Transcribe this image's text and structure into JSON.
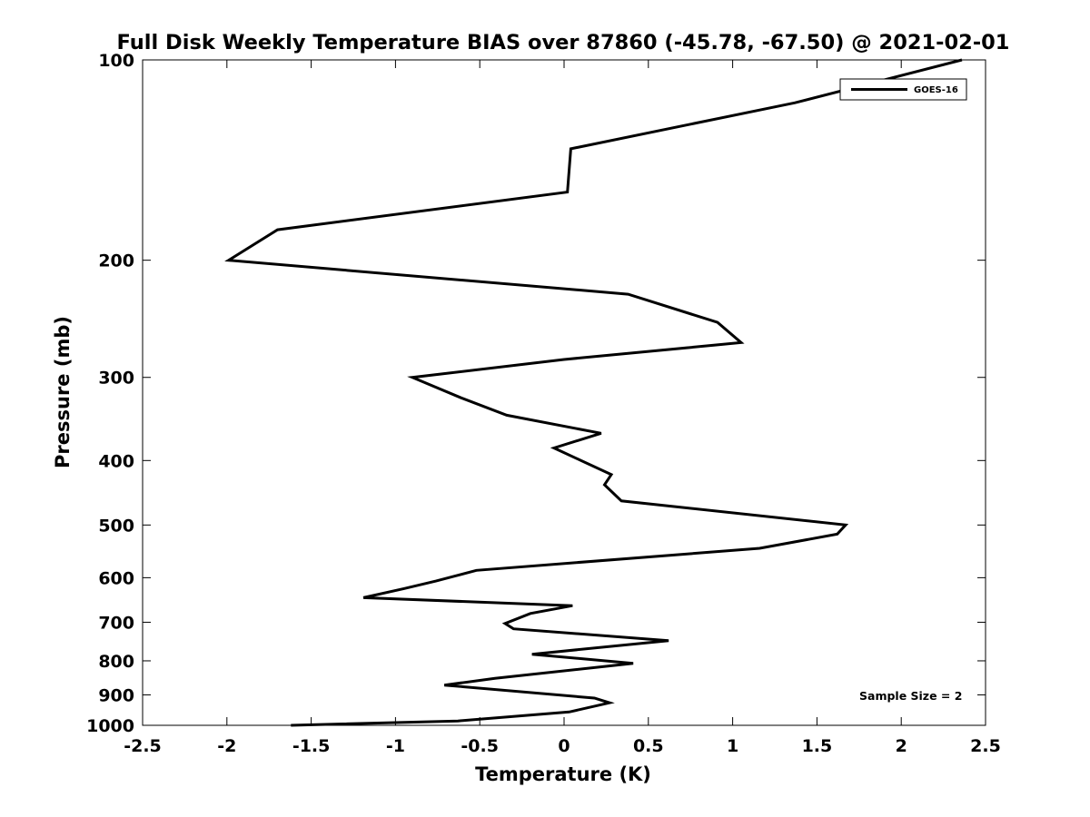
{
  "chart_data": {
    "type": "line",
    "title": "Full Disk Weekly Temperature BIAS over 87860 (-45.78, -67.50) @ 2021-02-01",
    "xlabel": "Temperature (K)",
    "ylabel": "Pressure (mb)",
    "xlim": [
      -2.5,
      2.5
    ],
    "ylim": [
      100,
      1000
    ],
    "yscale": "log",
    "yreversed": true,
    "xticks": [
      -2.5,
      -2,
      -1.5,
      -1,
      -0.5,
      0,
      0.5,
      1,
      1.5,
      2,
      2.5
    ],
    "xtick_labels": [
      "-2.5",
      "-2",
      "-1.5",
      "-1",
      "-0.5",
      "0",
      "0.5",
      "1",
      "1.5",
      "2",
      "2.5"
    ],
    "yticks": [
      100,
      200,
      300,
      400,
      500,
      600,
      700,
      800,
      900,
      1000
    ],
    "ytick_labels": [
      "100",
      "200",
      "300",
      "400",
      "500",
      "600",
      "700",
      "800",
      "900",
      "1000"
    ],
    "grid": false,
    "legend_position": "top-right",
    "series": [
      {
        "name": "GOES-16",
        "color": "#000000",
        "points": [
          [
            2.36,
            100
          ],
          [
            1.37,
            116
          ],
          [
            0.04,
            136
          ],
          [
            0.02,
            158
          ],
          [
            -1.7,
            180
          ],
          [
            -1.99,
            200
          ],
          [
            0.38,
            225
          ],
          [
            0.91,
            248
          ],
          [
            1.05,
            266
          ],
          [
            0,
            282
          ],
          [
            -0.9,
            300
          ],
          [
            -0.61,
            322
          ],
          [
            -0.34,
            342
          ],
          [
            0.22,
            364
          ],
          [
            -0.06,
            383
          ],
          [
            0.28,
            420
          ],
          [
            0.24,
            435
          ],
          [
            0.34,
            460
          ],
          [
            1.67,
            500
          ],
          [
            1.62,
            516
          ],
          [
            1.16,
            542
          ],
          [
            -0.52,
            585
          ],
          [
            -0.76,
            607
          ],
          [
            -0.95,
            623
          ],
          [
            -1.19,
            643
          ],
          [
            0.05,
            661
          ],
          [
            -0.2,
            679
          ],
          [
            -0.35,
            703
          ],
          [
            -0.3,
            716
          ],
          [
            0.62,
            746
          ],
          [
            -0.19,
            782
          ],
          [
            0.41,
            807
          ],
          [
            -0.41,
            850
          ],
          [
            -0.71,
            870
          ],
          [
            0.18,
            910
          ],
          [
            0.27,
            925
          ],
          [
            0.03,
            955
          ],
          [
            -0.63,
            985
          ],
          [
            -1.62,
            1000
          ]
        ]
      }
    ],
    "annotations": [
      {
        "text": "Sample Size = 2",
        "position": "bottom-right"
      }
    ]
  }
}
